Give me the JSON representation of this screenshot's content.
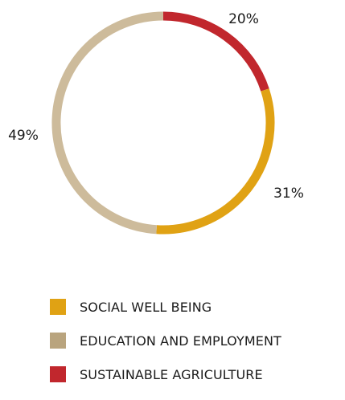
{
  "chart_data": {
    "type": "pie",
    "style": "donut",
    "title": "",
    "categories": [
      "SOCIAL WELL BEING",
      "EDUCATION AND EMPLOYMENT",
      "SUSTAINABLE AGRICULTURE"
    ],
    "values": [
      31,
      49,
      20
    ],
    "value_labels": [
      "31%",
      "49%",
      "20%"
    ],
    "colors": [
      "#e0a214",
      "#cdbb9b",
      "#c1272d"
    ],
    "legend_colors": [
      "#e0a214",
      "#b9a47e",
      "#c1272d"
    ],
    "legend_position": "bottom",
    "grid": false
  }
}
